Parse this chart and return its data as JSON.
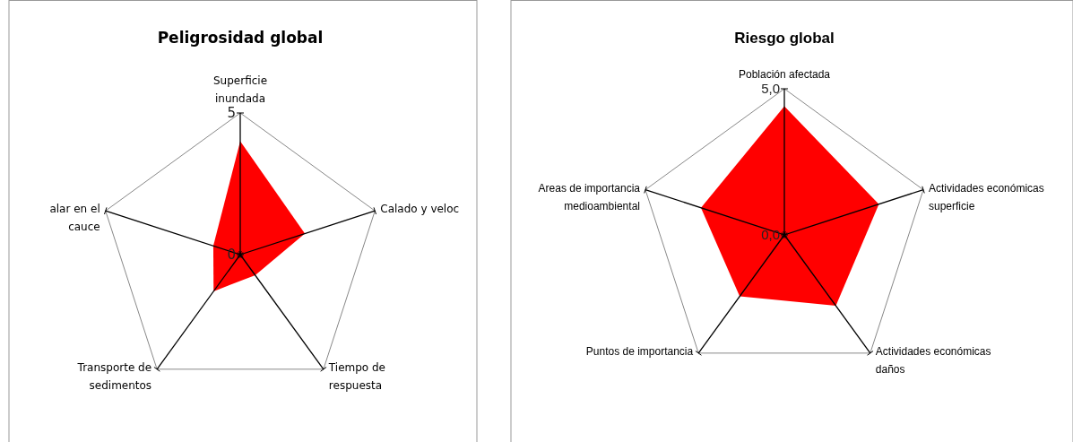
{
  "chart_data": [
    {
      "type": "radar",
      "title": "Peligrosidad global",
      "categories": [
        "Superficie inundada",
        "Calado y veloc",
        "Tiempo de respuesta",
        "Transporte de sedimentos",
        "alar en el cauce"
      ],
      "series": [
        {
          "color": "#ff0000",
          "values": [
            4,
            2.4,
            0.9,
            1.6,
            1
          ]
        }
      ],
      "ylim": [
        0,
        5
      ],
      "yticks": [
        0,
        5
      ]
    },
    {
      "type": "radar",
      "title": "Riesgo global",
      "categories": [
        "Población afectada",
        "Actividades económicas superficie",
        "Actividades económicas daños",
        "Puntos de importancia",
        "Areas de importancia medioambiental"
      ],
      "series": [
        {
          "color": "#ff0000",
          "values": [
            4.4,
            3.4,
            3,
            2.6,
            3
          ]
        }
      ],
      "ylim": [
        0,
        5
      ],
      "yticks": [
        {
          "value": 0,
          "label": "0,0"
        },
        {
          "value": 5,
          "label": "5,0"
        }
      ]
    }
  ]
}
